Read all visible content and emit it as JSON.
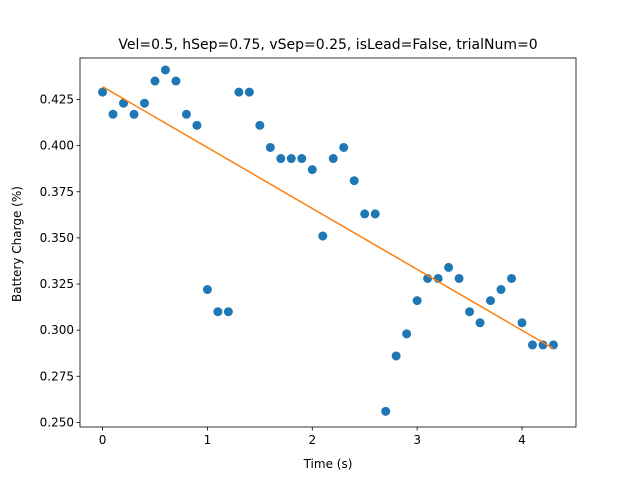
{
  "chart_data": {
    "type": "scatter",
    "title": "Vel=0.5, hSep=0.75, vSep=0.25, isLead=False, trialNum=0",
    "xlabel": "Time (s)",
    "ylabel": "Battery Charge (%)",
    "xlim": [
      -0.215,
      4.515
    ],
    "ylim": [
      0.2475,
      0.4475
    ],
    "xticks": [
      0,
      1,
      2,
      3,
      4
    ],
    "yticks": [
      0.25,
      0.275,
      0.3,
      0.325,
      0.35,
      0.375,
      0.4,
      0.425
    ],
    "ytick_labels": [
      "0.250",
      "0.275",
      "0.300",
      "0.325",
      "0.350",
      "0.375",
      "0.400",
      "0.425"
    ],
    "grid": false,
    "series": [
      {
        "type": "scatter",
        "color": "#1f77b4",
        "x": [
          0.0,
          0.1,
          0.2,
          0.3,
          0.4,
          0.5,
          0.6,
          0.7,
          0.8,
          0.9,
          1.0,
          1.1,
          1.2,
          1.3,
          1.4,
          1.5,
          1.6,
          1.7,
          1.8,
          1.9,
          2.0,
          2.1,
          2.2,
          2.3,
          2.4,
          2.5,
          2.6,
          2.7,
          2.8,
          2.9,
          3.0,
          3.1,
          3.2,
          3.3,
          3.4,
          3.5,
          3.6,
          3.7,
          3.8,
          3.9,
          4.0,
          4.1,
          4.2,
          4.3
        ],
        "y": [
          0.429,
          0.417,
          0.423,
          0.417,
          0.423,
          0.435,
          0.441,
          0.435,
          0.417,
          0.411,
          0.322,
          0.31,
          0.31,
          0.429,
          0.429,
          0.411,
          0.399,
          0.393,
          0.393,
          0.393,
          0.387,
          0.351,
          0.393,
          0.399,
          0.381,
          0.363,
          0.363,
          0.256,
          0.286,
          0.298,
          0.316,
          0.328,
          0.328,
          0.334,
          0.328,
          0.31,
          0.304,
          0.316,
          0.322,
          0.328,
          0.304,
          0.292,
          0.292,
          0.292
        ]
      },
      {
        "type": "line",
        "color": "#ff7f0e",
        "x": [
          0.0,
          4.3
        ],
        "y": [
          0.432,
          0.29
        ]
      }
    ]
  }
}
